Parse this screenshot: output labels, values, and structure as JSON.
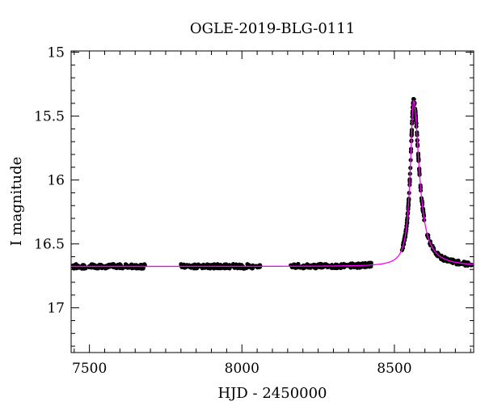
{
  "chart_data": {
    "type": "scatter",
    "title": "OGLE-2019-BLG-0111",
    "xlabel": "HJD - 2450000",
    "ylabel": "I magnitude",
    "xlim": [
      7440,
      8760
    ],
    "ylim": [
      17.35,
      14.99
    ],
    "y_inverted": true,
    "x_ticks": [
      7500,
      8000,
      8500
    ],
    "x_tick_labels": [
      "7500",
      "8000",
      "8500"
    ],
    "y_ticks": [
      15,
      15.5,
      16,
      16.5,
      17
    ],
    "y_tick_labels": [
      "15",
      "15.5",
      "16",
      "16.5",
      "17"
    ],
    "grid": false,
    "observations": {
      "color": "#000000",
      "segments": [
        {
          "x_start": 7445,
          "x_end": 7685,
          "count": 150
        },
        {
          "x_start": 7800,
          "x_end": 8060,
          "count": 160
        },
        {
          "x_start": 8160,
          "x_end": 8425,
          "count": 170
        },
        {
          "x_start": 8525,
          "x_end": 8755,
          "count": 230
        }
      ],
      "baseline_mag": 16.676
    },
    "model": {
      "color": "#ff00ff",
      "baseline_mag": 16.676,
      "peak_time": 8563,
      "peak_mag": 15.38,
      "rise_timescale": 13,
      "decay_timescale": 22
    }
  }
}
